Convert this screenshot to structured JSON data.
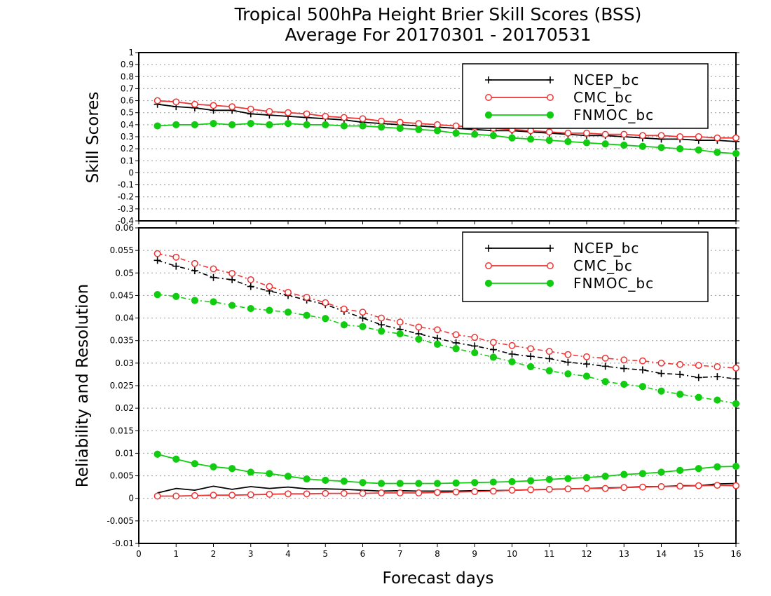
{
  "title_line1": "Tropical 500hPa Height Brier Skill Scores (BSS)",
  "title_line2": "Average For 20170301 - 20170531",
  "xlabel": "Forecast days",
  "legend_entries": [
    "NCEP_bc",
    "CMC_bc",
    "FNMOC_bc"
  ],
  "colors": {
    "NCEP_bc": "#000000",
    "CMC_bc": "#ee3333",
    "FNMOC_bc": "#11cc11"
  },
  "chart_data": [
    {
      "type": "line",
      "ylabel": "Skill Scores",
      "xlim": [
        0,
        16
      ],
      "ylim": [
        -0.4,
        1
      ],
      "xticks": [
        0,
        1,
        2,
        3,
        4,
        5,
        6,
        7,
        8,
        9,
        10,
        11,
        12,
        13,
        14,
        15,
        16
      ],
      "yticks": [
        -0.4,
        -0.3,
        -0.2,
        -0.1,
        0,
        0.1,
        0.2,
        0.3,
        0.4,
        0.5,
        0.6,
        0.7,
        0.8,
        0.9,
        1
      ],
      "ytick_labels": [
        "-0.4",
        "-0.3",
        "-0.2",
        "-0.1",
        "0",
        "0.1",
        "0.2",
        "0.3",
        "0.4",
        "0.5",
        "0.6",
        "0.7",
        "0.8",
        "0.9",
        "1"
      ],
      "grid": true,
      "legend_position": "top-right",
      "x": [
        0.5,
        1,
        1.5,
        2,
        2.5,
        3,
        3.5,
        4,
        4.5,
        5,
        5.5,
        6,
        6.5,
        7,
        7.5,
        8,
        8.5,
        9,
        9.5,
        10,
        10.5,
        11,
        11.5,
        12,
        12.5,
        13,
        13.5,
        14,
        14.5,
        15,
        15.5,
        16
      ],
      "series": [
        {
          "name": "NCEP_bc",
          "marker": "plus",
          "linestyle": "solid",
          "values": [
            0.57,
            0.55,
            0.54,
            0.52,
            0.52,
            0.49,
            0.48,
            0.47,
            0.46,
            0.45,
            0.44,
            0.42,
            0.41,
            0.4,
            0.39,
            0.38,
            0.37,
            0.36,
            0.35,
            0.35,
            0.34,
            0.33,
            0.32,
            0.31,
            0.31,
            0.3,
            0.29,
            0.28,
            0.28,
            0.27,
            0.27,
            0.26
          ]
        },
        {
          "name": "CMC_bc",
          "marker": "open-circle",
          "linestyle": "solid",
          "values": [
            0.6,
            0.59,
            0.57,
            0.56,
            0.55,
            0.53,
            0.51,
            0.5,
            0.49,
            0.47,
            0.46,
            0.45,
            0.43,
            0.42,
            0.41,
            0.4,
            0.39,
            0.38,
            0.37,
            0.36,
            0.35,
            0.34,
            0.33,
            0.33,
            0.32,
            0.32,
            0.31,
            0.31,
            0.3,
            0.3,
            0.29,
            0.29
          ]
        },
        {
          "name": "FNMOC_bc",
          "marker": "filled-circle",
          "linestyle": "solid",
          "values": [
            0.39,
            0.4,
            0.4,
            0.41,
            0.4,
            0.41,
            0.4,
            0.41,
            0.4,
            0.4,
            0.39,
            0.39,
            0.38,
            0.37,
            0.36,
            0.35,
            0.33,
            0.32,
            0.31,
            0.29,
            0.28,
            0.27,
            0.26,
            0.25,
            0.24,
            0.23,
            0.22,
            0.21,
            0.2,
            0.19,
            0.17,
            0.16
          ]
        }
      ]
    },
    {
      "type": "line",
      "ylabel": "Reliability and Resolution",
      "xlim": [
        0,
        16
      ],
      "ylim": [
        -0.01,
        0.06
      ],
      "xticks": [
        0,
        1,
        2,
        3,
        4,
        5,
        6,
        7,
        8,
        9,
        10,
        11,
        12,
        13,
        14,
        15,
        16
      ],
      "yticks": [
        -0.01,
        -0.005,
        0,
        0.005,
        0.01,
        0.015,
        0.02,
        0.025,
        0.03,
        0.035,
        0.04,
        0.045,
        0.05,
        0.055,
        0.06
      ],
      "ytick_labels": [
        "-0.01",
        "-0.005",
        "0",
        "0.005",
        "0.01",
        "0.015",
        "0.02",
        "0.025",
        "0.03",
        "0.035",
        "0.04",
        "0.045",
        "0.05",
        "0.055",
        "0.06"
      ],
      "grid": true,
      "legend_position": "top-right",
      "x": [
        0.5,
        1,
        1.5,
        2,
        2.5,
        3,
        3.5,
        4,
        4.5,
        5,
        5.5,
        6,
        6.5,
        7,
        7.5,
        8,
        8.5,
        9,
        9.5,
        10,
        10.5,
        11,
        11.5,
        12,
        12.5,
        13,
        13.5,
        14,
        14.5,
        15,
        15.5,
        16
      ],
      "series": [
        {
          "name": "NCEP_bc",
          "marker": "plus",
          "linestyle": "dash-dot",
          "values": [
            0.0528,
            0.0515,
            0.0505,
            0.049,
            0.0485,
            0.047,
            0.046,
            0.045,
            0.044,
            0.043,
            0.0415,
            0.04,
            0.0385,
            0.0375,
            0.0365,
            0.0355,
            0.0345,
            0.0338,
            0.033,
            0.032,
            0.0315,
            0.031,
            0.0302,
            0.0298,
            0.0293,
            0.0288,
            0.0285,
            0.0277,
            0.0275,
            0.0268,
            0.027,
            0.0265
          ]
        },
        {
          "name": "CMC_bc",
          "marker": "open-circle",
          "linestyle": "dash-dot",
          "values": [
            0.0543,
            0.0535,
            0.0521,
            0.0509,
            0.0499,
            0.0485,
            0.047,
            0.0457,
            0.0446,
            0.0434,
            0.042,
            0.0413,
            0.04,
            0.0391,
            0.038,
            0.0374,
            0.0363,
            0.0357,
            0.0346,
            0.0339,
            0.0332,
            0.0326,
            0.0319,
            0.0314,
            0.0311,
            0.0307,
            0.0305,
            0.03,
            0.0297,
            0.0295,
            0.0292,
            0.0289
          ]
        },
        {
          "name": "FNMOC_bc",
          "marker": "filled-circle",
          "linestyle": "dash-dot",
          "values": [
            0.0452,
            0.0448,
            0.0439,
            0.0436,
            0.0428,
            0.0421,
            0.0417,
            0.0413,
            0.0406,
            0.0399,
            0.0385,
            0.0381,
            0.0371,
            0.0365,
            0.0353,
            0.0342,
            0.0332,
            0.0323,
            0.0313,
            0.0303,
            0.0292,
            0.0283,
            0.0276,
            0.0271,
            0.0259,
            0.0253,
            0.0248,
            0.0238,
            0.0231,
            0.0224,
            0.0218,
            0.021
          ]
        },
        {
          "name": "NCEP_bc",
          "marker": "none",
          "linestyle": "solid",
          "values": [
            0.0012,
            0.0022,
            0.0018,
            0.0027,
            0.002,
            0.0026,
            0.0022,
            0.0025,
            0.0021,
            0.0021,
            0.002,
            0.0018,
            0.0016,
            0.0017,
            0.0016,
            0.0016,
            0.0016,
            0.0017,
            0.0017,
            0.0018,
            0.0019,
            0.002,
            0.0021,
            0.0022,
            0.0023,
            0.0024,
            0.0026,
            0.0026,
            0.0028,
            0.0028,
            0.0032,
            0.0033
          ]
        },
        {
          "name": "CMC_bc",
          "marker": "open-circle",
          "linestyle": "solid",
          "values": [
            0.0005,
            0.0005,
            0.0006,
            0.0007,
            0.0007,
            0.0008,
            0.0009,
            0.001,
            0.001,
            0.0011,
            0.0011,
            0.0011,
            0.0012,
            0.0012,
            0.0012,
            0.0013,
            0.0014,
            0.0015,
            0.0016,
            0.0018,
            0.0019,
            0.002,
            0.0021,
            0.0022,
            0.0022,
            0.0024,
            0.0025,
            0.0026,
            0.0027,
            0.0028,
            0.0029,
            0.0028
          ]
        },
        {
          "name": "FNMOC_bc",
          "marker": "filled-circle",
          "linestyle": "solid",
          "values": [
            0.0098,
            0.0087,
            0.0077,
            0.007,
            0.0066,
            0.0058,
            0.0055,
            0.0049,
            0.0043,
            0.004,
            0.0038,
            0.0035,
            0.0033,
            0.0033,
            0.0033,
            0.0033,
            0.0034,
            0.0035,
            0.0036,
            0.0037,
            0.0039,
            0.0042,
            0.0044,
            0.0046,
            0.0049,
            0.0053,
            0.0055,
            0.0058,
            0.0062,
            0.0066,
            0.007,
            0.0071
          ]
        }
      ]
    }
  ]
}
